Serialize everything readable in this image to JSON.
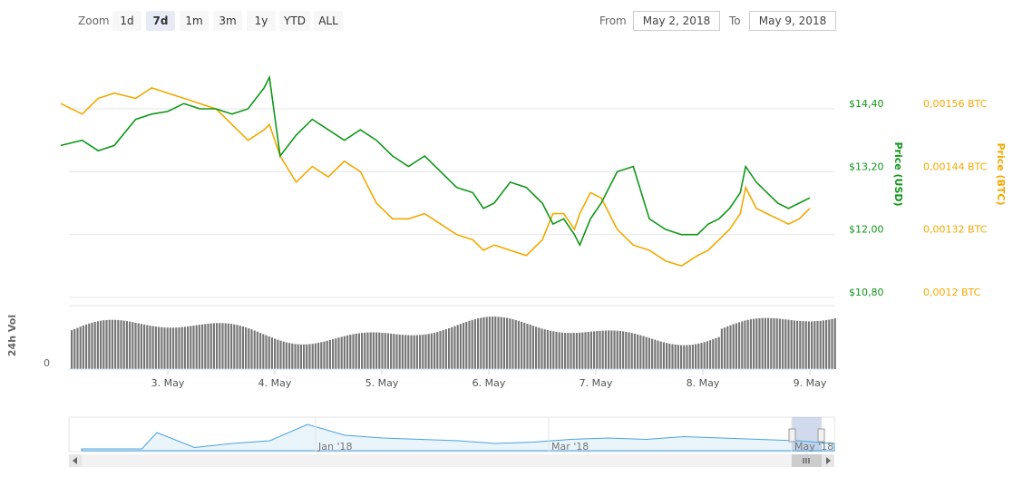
{
  "toolbar": {
    "zoom_label": "Zoom",
    "zoom_buttons": [
      {
        "label": "1d",
        "active": false
      },
      {
        "label": "7d",
        "active": true
      },
      {
        "label": "1m",
        "active": false
      },
      {
        "label": "3m",
        "active": false
      },
      {
        "label": "1y",
        "active": false
      },
      {
        "label": "YTD",
        "active": false
      },
      {
        "label": "ALL",
        "active": false
      }
    ],
    "from_label": "From",
    "from_value": "May 2, 2018",
    "to_label": "To",
    "to_value": "May 9, 2018"
  },
  "colors": {
    "usd": "#109618",
    "btc": "#f2a900",
    "volume": "#777777",
    "navigator": "#4aa3df",
    "grid": "#e6e6e6"
  },
  "chart_data": {
    "type": "line",
    "x_ticks": [
      "3. May",
      "4. May",
      "5. May",
      "6. May",
      "7. May",
      "8. May",
      "9. May"
    ],
    "y_left": {
      "label": "Price (USD)",
      "ticks": [
        "$14,40",
        "$13,20",
        "$12,00",
        "$10,80"
      ],
      "range": [
        10.8,
        14.4
      ]
    },
    "y_right": {
      "label": "Price (BTC)",
      "ticks": [
        "0,00156 BTC",
        "0,00144 BTC",
        "0,00132 BTC",
        "0,0012 BTC"
      ],
      "range": [
        0.0012,
        0.00156
      ]
    },
    "volume_label": "24h Vol",
    "volume_zero": "0",
    "series": [
      {
        "axis": "usd",
        "days": [
          2.0,
          2.2,
          2.35,
          2.5,
          2.7,
          2.85,
          3.0,
          3.15,
          3.3,
          3.45,
          3.6,
          3.75,
          3.9,
          3.95,
          4.05,
          4.2,
          4.35,
          4.5,
          4.65,
          4.8,
          4.95,
          5.1,
          5.25,
          5.4,
          5.55,
          5.7,
          5.85,
          5.95,
          6.05,
          6.2,
          6.35,
          6.5,
          6.6,
          6.7,
          6.8,
          6.85,
          6.95,
          7.05,
          7.2,
          7.35,
          7.5,
          7.65,
          7.8,
          7.95,
          8.05,
          8.15,
          8.25,
          8.35,
          8.4,
          8.5,
          8.6,
          8.7,
          8.8,
          8.9,
          9.0
        ],
        "values": [
          13.7,
          13.8,
          13.6,
          13.7,
          14.2,
          14.3,
          14.35,
          14.5,
          14.4,
          14.4,
          14.3,
          14.4,
          14.8,
          15.0,
          13.5,
          13.9,
          14.2,
          14.0,
          13.8,
          14.0,
          13.8,
          13.5,
          13.3,
          13.5,
          13.2,
          12.9,
          12.8,
          12.5,
          12.6,
          13.0,
          12.9,
          12.6,
          12.2,
          12.3,
          12.0,
          11.8,
          12.3,
          12.6,
          13.2,
          13.3,
          12.3,
          12.1,
          12.0,
          12.0,
          12.2,
          12.3,
          12.5,
          12.8,
          13.3,
          13.0,
          12.8,
          12.6,
          12.5,
          12.6,
          12.7
        ]
      },
      {
        "axis": "btc",
        "days": [
          2.0,
          2.2,
          2.35,
          2.5,
          2.7,
          2.85,
          3.0,
          3.15,
          3.3,
          3.45,
          3.6,
          3.75,
          3.9,
          3.95,
          4.05,
          4.2,
          4.35,
          4.5,
          4.65,
          4.8,
          4.95,
          5.1,
          5.25,
          5.4,
          5.55,
          5.7,
          5.85,
          5.95,
          6.05,
          6.2,
          6.35,
          6.5,
          6.6,
          6.7,
          6.8,
          6.85,
          6.95,
          7.05,
          7.2,
          7.35,
          7.5,
          7.65,
          7.8,
          7.95,
          8.05,
          8.15,
          8.25,
          8.35,
          8.4,
          8.5,
          8.6,
          8.7,
          8.8,
          8.9,
          9.0
        ],
        "values": [
          0.00157,
          0.00155,
          0.00158,
          0.00159,
          0.00158,
          0.0016,
          0.00159,
          0.00158,
          0.00157,
          0.00156,
          0.00153,
          0.0015,
          0.00152,
          0.00153,
          0.00147,
          0.00142,
          0.00145,
          0.00143,
          0.00146,
          0.00144,
          0.00138,
          0.00135,
          0.00135,
          0.00136,
          0.00134,
          0.00132,
          0.00131,
          0.00129,
          0.0013,
          0.00129,
          0.00128,
          0.00131,
          0.00136,
          0.00136,
          0.00133,
          0.00136,
          0.0014,
          0.00139,
          0.00133,
          0.0013,
          0.00129,
          0.00127,
          0.00126,
          0.00128,
          0.00129,
          0.00131,
          0.00133,
          0.00136,
          0.00141,
          0.00137,
          0.00136,
          0.00135,
          0.00134,
          0.00135,
          0.00137
        ]
      }
    ],
    "navigator": {
      "ticks": [
        "Jan '18",
        "Mar '18",
        "May '18"
      ],
      "days": [
        0,
        0.08,
        0.1,
        0.15,
        0.2,
        0.25,
        0.3,
        0.35,
        0.4,
        0.45,
        0.5,
        0.55,
        0.6,
        0.65,
        0.7,
        0.75,
        0.8,
        0.85,
        0.9,
        0.95,
        1.0
      ],
      "values": [
        0.0,
        0.0,
        0.6,
        0.05,
        0.2,
        0.3,
        0.9,
        0.5,
        0.4,
        0.35,
        0.3,
        0.2,
        0.25,
        0.35,
        0.4,
        0.35,
        0.45,
        0.4,
        0.35,
        0.3,
        0.2
      ]
    }
  }
}
